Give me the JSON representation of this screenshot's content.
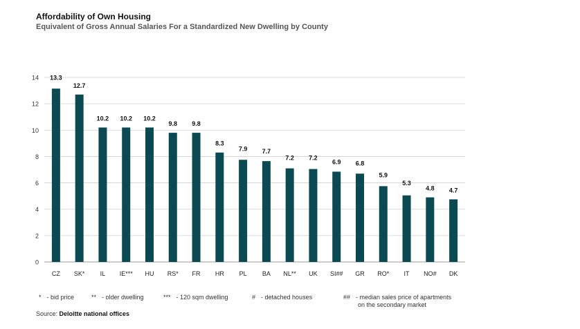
{
  "chart_data": {
    "type": "bar",
    "title": "Affordability of Own Housing",
    "subtitle": "Equivalent of Gross Annual Salaries For a Standardized New Dwelling by County",
    "categories": [
      "CZ",
      "SK*",
      "IL",
      "IE***",
      "HU",
      "RS*",
      "FR",
      "HR",
      "PL",
      "BA",
      "NL**",
      "UK",
      "SI##",
      "GR",
      "RO*",
      "IT",
      "NO#",
      "DK"
    ],
    "values": [
      13.3,
      12.7,
      10.2,
      10.2,
      10.2,
      9.8,
      9.8,
      8.3,
      7.9,
      7.7,
      7.2,
      7.2,
      6.9,
      6.8,
      5.9,
      5.3,
      4.8,
      4.7
    ],
    "value_labels": [
      "13.3",
      "12.7",
      "10.2",
      "10.2",
      "10.2",
      "9.8",
      "9.8",
      "8.3",
      "7.9",
      "7.7",
      "7.2",
      "7.2",
      "6.9",
      "6.8",
      "5.9",
      "5.3",
      "4.8",
      "4.7"
    ],
    "bar_heights": [
      13.15,
      12.7,
      10.2,
      10.2,
      10.2,
      9.8,
      9.8,
      8.3,
      7.75,
      7.65,
      7.1,
      7.05,
      6.85,
      6.7,
      5.75,
      5.05,
      4.9,
      4.75
    ],
    "yticks": [
      "0",
      "2",
      "4",
      "6",
      "8",
      "10",
      "12",
      "14"
    ],
    "ylim": [
      0,
      14
    ],
    "xlabel": "",
    "ylabel": "",
    "grid": true,
    "bar_color": "#0b4a52",
    "grid_color": "#cfcfcf"
  },
  "legend": [
    {
      "symbol": "*",
      "text": "- bid price"
    },
    {
      "symbol": "**",
      "text": "- older dwelling"
    },
    {
      "symbol": "***",
      "text": "- 120 sqm dwelling"
    },
    {
      "symbol": "#",
      "text": "- detached houses"
    },
    {
      "symbol": "##",
      "text": "- median sales price of apartments",
      "text2": "on the secondary market"
    }
  ],
  "source": {
    "prefix": "Source:",
    "name": "Deloitte national offices"
  }
}
